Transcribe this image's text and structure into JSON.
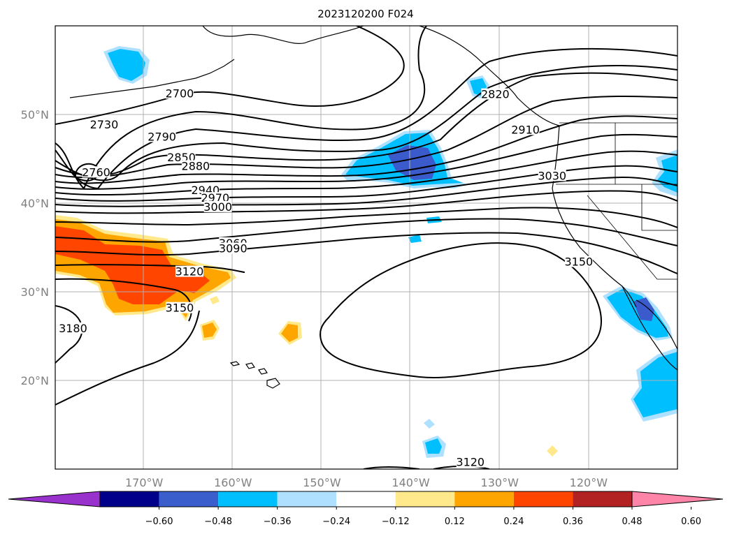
{
  "figure": {
    "title": "2023120200 F024"
  },
  "map": {
    "projection": "lat-lon",
    "lon_range": [
      -180,
      -110
    ],
    "lat_range": [
      10,
      60
    ],
    "grid": true,
    "lon_ticks": [
      -170,
      -160,
      -150,
      -140,
      -130,
      -120
    ],
    "lon_tick_labels": [
      "170°W",
      "160°W",
      "150°W",
      "140°W",
      "130°W",
      "120°W"
    ],
    "lat_ticks": [
      20,
      30,
      40,
      50
    ],
    "lat_tick_labels": [
      "20°N",
      "30°N",
      "40°N",
      "50°N"
    ],
    "contour_labels": [
      {
        "text": "2700",
        "lon": -166.0,
        "lat": 52.1
      },
      {
        "text": "2730",
        "lon": -174.5,
        "lat": 48.6
      },
      {
        "text": "2760",
        "lon": -175.4,
        "lat": 43.2
      },
      {
        "text": "2790",
        "lon": -168.0,
        "lat": 47.2
      },
      {
        "text": "2820",
        "lon": -130.5,
        "lat": 52.0
      },
      {
        "text": "2850",
        "lon": -165.8,
        "lat": 44.9
      },
      {
        "text": "2880",
        "lon": -164.2,
        "lat": 43.9
      },
      {
        "text": "2910",
        "lon": -127.1,
        "lat": 48.0
      },
      {
        "text": "2940",
        "lon": -163.1,
        "lat": 41.2
      },
      {
        "text": "2970",
        "lon": -162.0,
        "lat": 40.3
      },
      {
        "text": "3000",
        "lon": -161.7,
        "lat": 39.3
      },
      {
        "text": "3030",
        "lon": -124.1,
        "lat": 42.8
      },
      {
        "text": "3060",
        "lon": -160.0,
        "lat": 35.2
      },
      {
        "text": "3090",
        "lon": -160.0,
        "lat": 34.6
      },
      {
        "text": "3120",
        "lon": -164.9,
        "lat": 32.0
      },
      {
        "text": "3120",
        "lon": -133.3,
        "lat": 10.5
      },
      {
        "text": "3150",
        "lon": -166.0,
        "lat": 27.9
      },
      {
        "text": "3150",
        "lon": -121.1,
        "lat": 33.1
      },
      {
        "text": "3180",
        "lon": -178.0,
        "lat": 25.6
      }
    ],
    "shaded_field_colors": {
      "neg_strong": "#3b5bcc",
      "neg_mid": "#00bfff",
      "neg_weak": "#aee0ff",
      "pos_weak": "#ffe98a",
      "pos_mid": "#ffa500",
      "pos_strong": "#ff4500"
    }
  },
  "colorbar": {
    "colors": [
      "#9932cc",
      "#00008b",
      "#3a5fcd",
      "#00bfff",
      "#afe0ff",
      "#ffffff",
      "#ffe98a",
      "#ffa500",
      "#ff4500",
      "#b22222",
      "#ff85a8"
    ],
    "ticks": [
      "−0.60",
      "−0.48",
      "−0.36",
      "−0.24",
      "−0.12",
      "0.12",
      "0.24",
      "0.36",
      "0.48",
      "0.60"
    ],
    "extend": "both"
  }
}
